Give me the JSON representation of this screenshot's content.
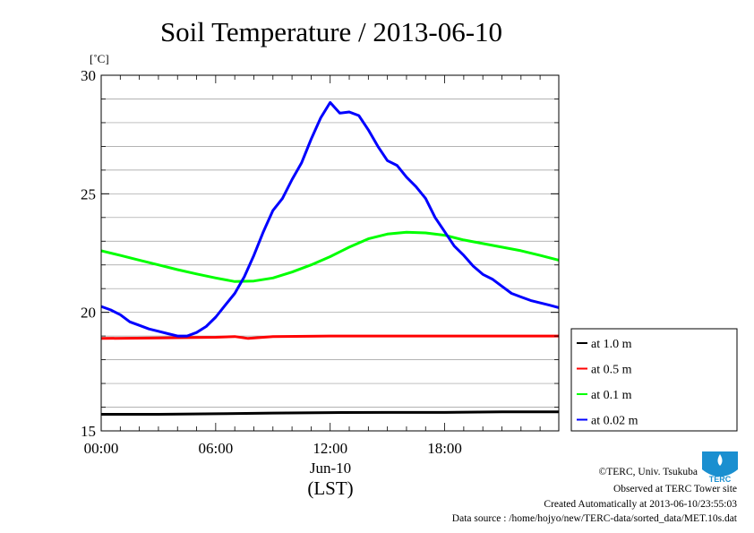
{
  "chart_data": {
    "type": "line",
    "title": "Soil Temperature / 2013-06-10",
    "unit_label": "[˚C]",
    "x_date_label": "Jun-10",
    "x_zone_label": "(LST)",
    "x_ticks": [
      "00:00",
      "06:00",
      "12:00",
      "18:00"
    ],
    "y_ticks": [
      15,
      20,
      25,
      30
    ],
    "xlim": [
      0,
      23.98
    ],
    "ylim": [
      15,
      30
    ],
    "grid": true,
    "legend_position": "right",
    "series": [
      {
        "name": "at 1.0 m",
        "color": "#000000",
        "x": [
          0,
          3,
          6,
          9,
          12,
          15,
          18,
          21,
          23.98
        ],
        "y": [
          15.7,
          15.7,
          15.72,
          15.75,
          15.77,
          15.78,
          15.78,
          15.8,
          15.8
        ]
      },
      {
        "name": "at 0.5 m",
        "color": "#ff0000",
        "x": [
          0,
          3,
          6,
          7,
          7.7,
          9,
          12,
          15,
          18,
          21,
          23.98
        ],
        "y": [
          18.9,
          18.92,
          18.95,
          18.98,
          18.9,
          18.98,
          19.0,
          19.0,
          19.0,
          19.0,
          19.0
        ]
      },
      {
        "name": "at 0.1 m",
        "color": "#00ff00",
        "x": [
          0,
          1,
          2,
          3,
          4,
          5,
          6,
          7,
          8,
          9,
          10,
          11,
          12,
          13,
          14,
          15,
          16,
          17,
          18,
          19,
          20,
          21,
          22,
          23,
          23.98
        ],
        "y": [
          22.6,
          22.4,
          22.2,
          22.0,
          21.8,
          21.62,
          21.45,
          21.3,
          21.32,
          21.45,
          21.7,
          22.0,
          22.35,
          22.75,
          23.1,
          23.3,
          23.38,
          23.35,
          23.25,
          23.05,
          22.9,
          22.75,
          22.6,
          22.4,
          22.2
        ]
      },
      {
        "name": "at 0.02 m",
        "color": "#0000ff",
        "x": [
          0,
          0.5,
          1,
          1.5,
          2,
          2.5,
          3,
          3.5,
          4,
          4.5,
          5,
          5.5,
          6,
          6.5,
          7,
          7.5,
          8,
          8.5,
          9,
          9.5,
          10,
          10.5,
          11,
          11.5,
          12,
          12.5,
          13,
          13.5,
          14,
          14.5,
          15,
          15.5,
          16,
          16.5,
          17,
          17.5,
          18,
          18.5,
          19,
          19.5,
          20,
          20.5,
          21,
          21.5,
          22,
          22.5,
          23,
          23.5,
          23.98
        ],
        "y": [
          20.25,
          20.1,
          19.9,
          19.6,
          19.45,
          19.3,
          19.2,
          19.1,
          19.0,
          19.0,
          19.15,
          19.4,
          19.8,
          20.3,
          20.8,
          21.5,
          22.4,
          23.4,
          24.3,
          24.8,
          25.6,
          26.3,
          27.3,
          28.2,
          28.85,
          28.4,
          28.45,
          28.3,
          27.7,
          27.0,
          26.4,
          26.2,
          25.7,
          25.3,
          24.8,
          24.0,
          23.4,
          22.8,
          22.4,
          21.95,
          21.6,
          21.4,
          21.1,
          20.8,
          20.65,
          20.5,
          20.4,
          20.3,
          20.2
        ]
      }
    ]
  },
  "credits": {
    "copyright": "©TERC, Univ. Tsukuba",
    "observed": "Observed at TERC Tower site",
    "created": "Created Automatically at 2013-06-10/23:55:03",
    "source": "Data source : /home/hojyo/new/TERC-data/sorted_data/MET.10s.dat"
  },
  "logo": {
    "text": "TERC",
    "color": "#1a8fd0"
  }
}
